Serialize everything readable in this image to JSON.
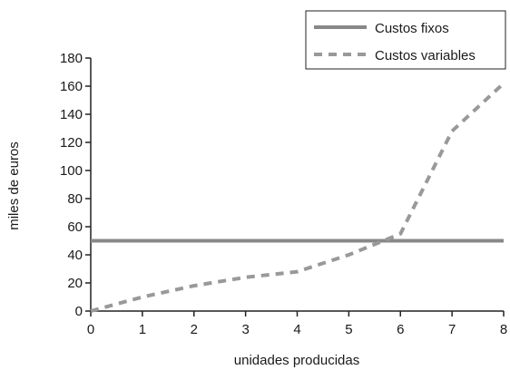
{
  "chart_data": {
    "type": "line",
    "title": "",
    "xlabel": "unidades producidas",
    "ylabel": "miles de euros",
    "xlim": [
      0,
      8
    ],
    "ylim": [
      0,
      180
    ],
    "x_ticks": [
      0,
      1,
      2,
      3,
      4,
      5,
      6,
      7,
      8
    ],
    "y_ticks": [
      0,
      20,
      40,
      60,
      80,
      100,
      120,
      140,
      160,
      180
    ],
    "grid": false,
    "legend_position": "top-right",
    "series": [
      {
        "name": "Custos fixos",
        "style": "solid",
        "color": "#888888",
        "points": [
          [
            0,
            50
          ],
          [
            8,
            50
          ]
        ]
      },
      {
        "name": "Custos variables",
        "style": "dashed",
        "color": "#999999",
        "points": [
          [
            0,
            0
          ],
          [
            1,
            10
          ],
          [
            2,
            18
          ],
          [
            3,
            24
          ],
          [
            4,
            28
          ],
          [
            5,
            40
          ],
          [
            6,
            55
          ],
          [
            7,
            128
          ],
          [
            8,
            162
          ]
        ]
      }
    ]
  }
}
